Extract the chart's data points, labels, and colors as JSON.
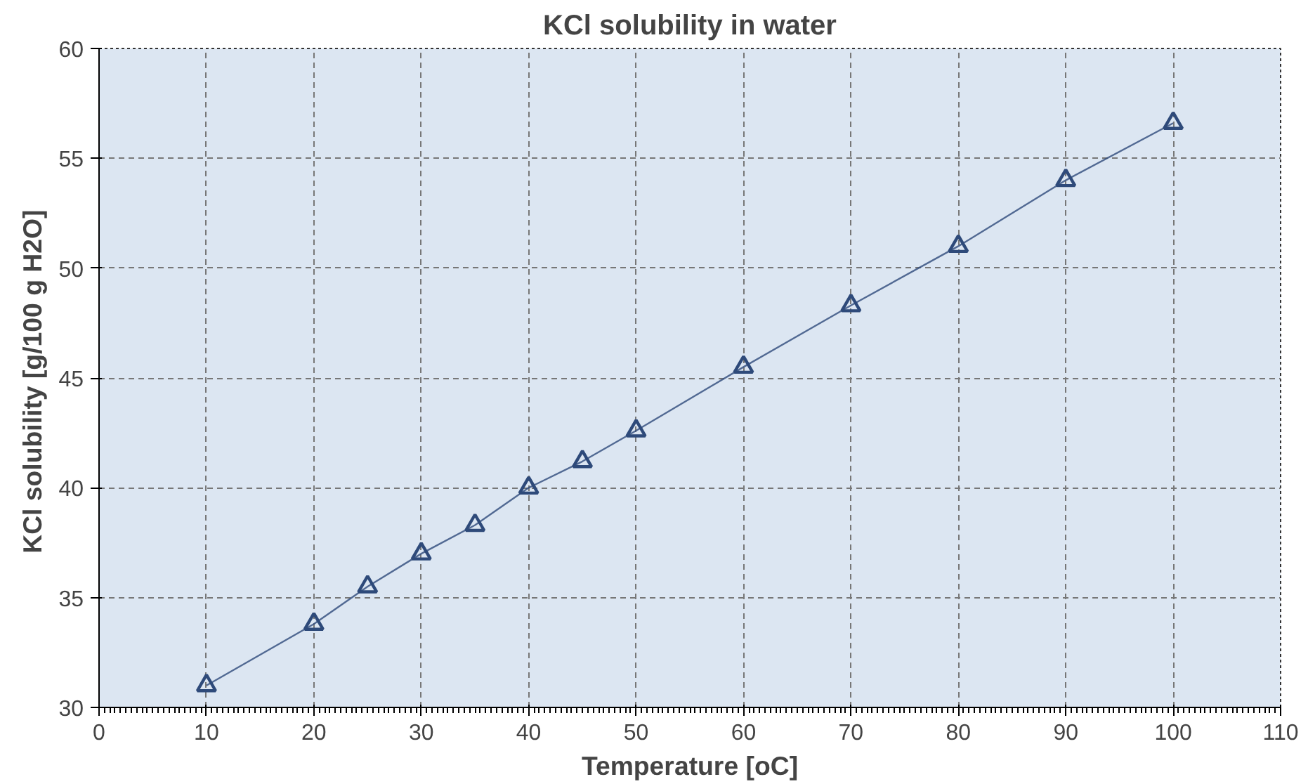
{
  "chart_data": {
    "type": "line",
    "title": "KCl solubility in water",
    "xlabel": "Temperature [oC]",
    "ylabel": "KCl solubility  [g/100 g H2O]",
    "x": [
      10,
      20,
      25,
      30,
      35,
      40,
      45,
      50,
      60,
      70,
      80,
      90,
      100
    ],
    "series": [
      {
        "color": "#2e4a7a",
        "values": [
          31.0,
          33.8,
          35.5,
          37.0,
          38.3,
          40.0,
          41.2,
          42.6,
          45.5,
          48.3,
          51.0,
          54.0,
          56.6
        ]
      }
    ],
    "xlim": [
      0,
      110
    ],
    "xticks": [
      0,
      10,
      20,
      30,
      40,
      50,
      60,
      70,
      80,
      90,
      100,
      110
    ],
    "ylim": [
      30,
      60
    ],
    "yticks": [
      30,
      35,
      40,
      45,
      50,
      55,
      60
    ],
    "grid": true,
    "marker": "triangle",
    "line_style": "solid"
  }
}
